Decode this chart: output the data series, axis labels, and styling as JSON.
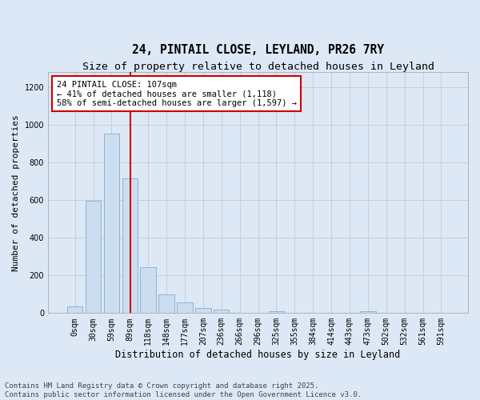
{
  "title": "24, PINTAIL CLOSE, LEYLAND, PR26 7RY",
  "subtitle": "Size of property relative to detached houses in Leyland",
  "xlabel": "Distribution of detached houses by size in Leyland",
  "ylabel": "Number of detached properties",
  "bar_labels": [
    "0sqm",
    "30sqm",
    "59sqm",
    "89sqm",
    "118sqm",
    "148sqm",
    "177sqm",
    "207sqm",
    "236sqm",
    "266sqm",
    "296sqm",
    "325sqm",
    "355sqm",
    "384sqm",
    "414sqm",
    "443sqm",
    "473sqm",
    "502sqm",
    "532sqm",
    "561sqm",
    "591sqm"
  ],
  "bar_values": [
    35,
    595,
    955,
    715,
    245,
    100,
    55,
    25,
    18,
    0,
    0,
    8,
    0,
    0,
    0,
    0,
    12,
    0,
    0,
    0,
    0
  ],
  "bar_color": "#ccddf0",
  "bar_edgecolor": "#8ab4d8",
  "vline_color": "#cc0000",
  "vline_x": 3.05,
  "annotation_text": "24 PINTAIL CLOSE: 107sqm\n← 41% of detached houses are smaller (1,118)\n58% of semi-detached houses are larger (1,597) →",
  "annotation_box_facecolor": "#ffffff",
  "annotation_box_edgecolor": "#cc0000",
  "ylim": [
    0,
    1280
  ],
  "yticks": [
    0,
    200,
    400,
    600,
    800,
    1000,
    1200
  ],
  "grid_color": "#cccccc",
  "bg_color": "#dce8f5",
  "footer_text": "Contains HM Land Registry data © Crown copyright and database right 2025.\nContains public sector information licensed under the Open Government Licence v3.0.",
  "title_fontsize": 10.5,
  "subtitle_fontsize": 9.5,
  "xlabel_fontsize": 8.5,
  "ylabel_fontsize": 8,
  "tick_fontsize": 7,
  "annotation_fontsize": 7.5,
  "footer_fontsize": 6.5
}
